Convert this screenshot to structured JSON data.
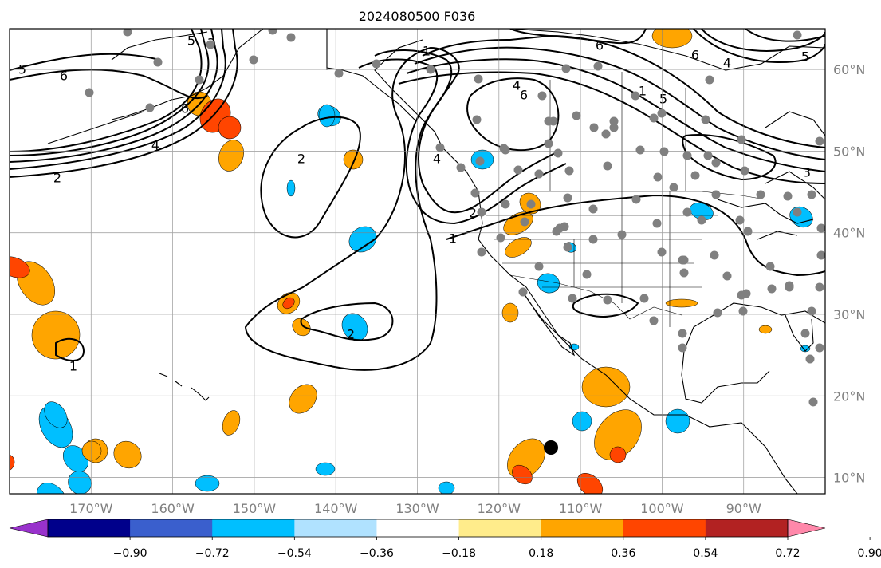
{
  "title": "2024080500 F036",
  "map": {
    "lon_range": [
      -180,
      -80
    ],
    "lat_range": [
      8,
      65
    ],
    "meridians": [
      -170,
      -160,
      -150,
      -140,
      -130,
      -120,
      -110,
      -100,
      -90
    ],
    "parallels": [
      10,
      20,
      30,
      40,
      50,
      60
    ],
    "lon_labels": [
      "170°W",
      "160°W",
      "150°W",
      "140°W",
      "130°W",
      "120°W",
      "110°W",
      "100°W",
      "90°W"
    ],
    "lat_labels": [
      "10°N",
      "20°N",
      "30°N",
      "40°N",
      "50°N",
      "60°N"
    ],
    "grid": true,
    "contour_labels": [
      "5",
      "6",
      "6",
      "4",
      "2",
      "5",
      "3",
      "1",
      "4",
      "6",
      "2",
      "5",
      "6",
      "2",
      "2",
      "1",
      "4",
      "3",
      "1",
      "6",
      "4",
      "5",
      "1"
    ],
    "station_marker_color": "#808080",
    "storm_marker_color": "#000000"
  },
  "colorbar": {
    "tick_labels": [
      "−0.90",
      "−0.72",
      "−0.54",
      "−0.36",
      "−0.18",
      "0.18",
      "0.36",
      "0.54",
      "0.72",
      "0.90"
    ],
    "colors": [
      "#9932cc",
      "#00008b",
      "#3a5fcd",
      "#00bfff",
      "#b0e2ff",
      "#ffffff",
      "#ffec8b",
      "#ffa500",
      "#ff4500",
      "#b22222",
      "#ff88aa"
    ]
  }
}
